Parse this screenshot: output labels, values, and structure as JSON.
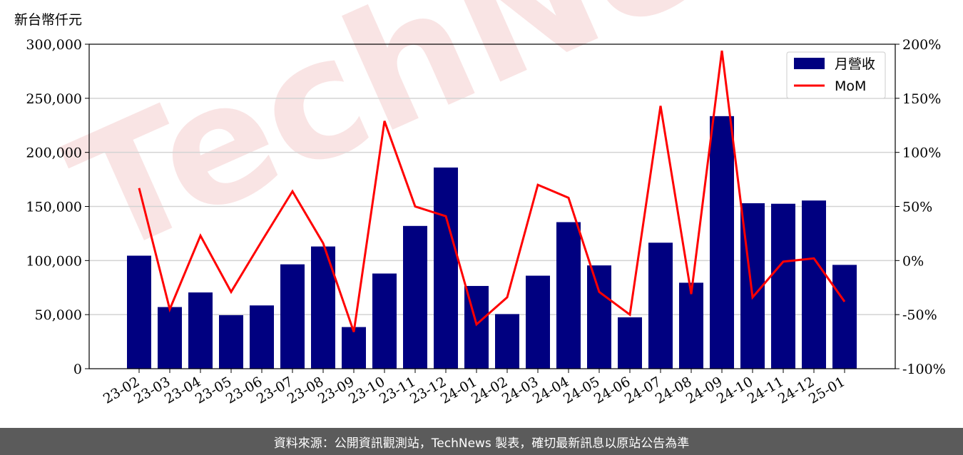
{
  "chart_data": {
    "type": "bar",
    "categories": [
      "23-02",
      "23-03",
      "23-04",
      "23-05",
      "23-06",
      "23-07",
      "23-08",
      "23-09",
      "23-10",
      "23-11",
      "23-12",
      "24-01",
      "24-02",
      "24-03",
      "24-04",
      "24-05",
      "24-06",
      "24-07",
      "24-08",
      "24-09",
      "24-10",
      "24-11",
      "24-12",
      "25-01"
    ],
    "series": [
      {
        "name": "月營收",
        "type": "bar",
        "axis": "left",
        "color": "#000080",
        "values": [
          104500,
          57000,
          70500,
          49500,
          58500,
          96500,
          113000,
          38500,
          88000,
          132000,
          186000,
          76500,
          50500,
          86000,
          135500,
          95500,
          47500,
          116500,
          79500,
          233500,
          153000,
          152500,
          155500,
          96000
        ]
      },
      {
        "name": "MoM",
        "type": "line",
        "axis": "right",
        "color": "#ff0000",
        "values": [
          67,
          -45,
          23,
          -29,
          18,
          64,
          16,
          -66,
          129,
          50,
          41,
          -59,
          -34,
          70,
          58,
          -29,
          -50,
          143,
          -31,
          194,
          -34,
          -1,
          2,
          -38
        ]
      }
    ],
    "ylabel": "新台幣仟元",
    "ylim": [
      0,
      300000
    ],
    "y_ticks": [
      "0",
      "50,000",
      "100,000",
      "150,000",
      "200,000",
      "250,000",
      "300,000"
    ],
    "y2lim": [
      -100,
      200
    ],
    "y2_ticks": [
      "-100%",
      "-50%",
      "0%",
      "50%",
      "100%",
      "150%",
      "200%"
    ],
    "grid": "horizontal",
    "legend": "top-right"
  },
  "watermark": "TechNews",
  "footer": "資料來源：公開資訊觀測站，TechNews 製表，確切最新訊息以原站公告為準"
}
